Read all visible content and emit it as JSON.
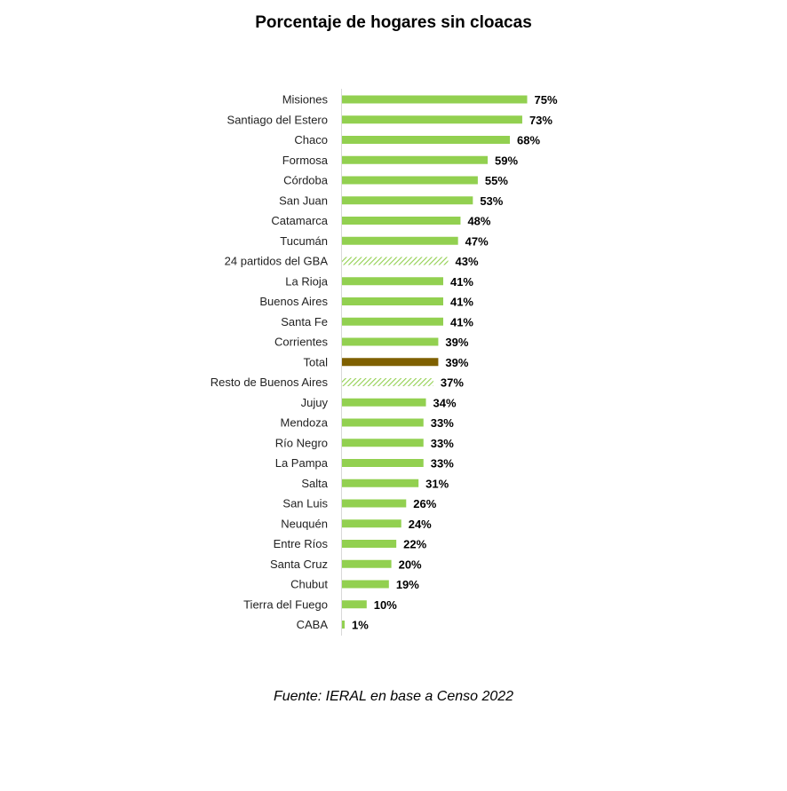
{
  "chart_data": {
    "type": "bar",
    "orientation": "horizontal",
    "title": "Porcentaje de hogares sin cloacas",
    "categories": [
      "Misiones",
      "Santiago del Estero",
      "Chaco",
      "Formosa",
      "Córdoba",
      "San Juan",
      "Catamarca",
      "Tucumán",
      "24 partidos del GBA",
      "La Rioja",
      "Buenos Aires",
      "Santa Fe",
      "Corrientes",
      "Total",
      "Resto de Buenos Aires",
      "Jujuy",
      "Mendoza",
      "Río Negro",
      "La Pampa",
      "Salta",
      "San Luis",
      "Neuquén",
      "Entre Ríos",
      "Santa Cruz",
      "Chubut",
      "Tierra del Fuego",
      "CABA"
    ],
    "values": [
      75,
      73,
      68,
      59,
      55,
      53,
      48,
      47,
      43,
      41,
      41,
      41,
      39,
      39,
      37,
      34,
      33,
      33,
      33,
      31,
      26,
      24,
      22,
      20,
      19,
      10,
      1
    ],
    "value_labels": [
      "75%",
      "73%",
      "68%",
      "59%",
      "55%",
      "53%",
      "48%",
      "47%",
      "43%",
      "41%",
      "41%",
      "41%",
      "39%",
      "39%",
      "37%",
      "34%",
      "33%",
      "33%",
      "33%",
      "31%",
      "26%",
      "24%",
      "22%",
      "20%",
      "19%",
      "10%",
      "1%"
    ],
    "bar_styles": [
      "solid",
      "solid",
      "solid",
      "solid",
      "solid",
      "solid",
      "solid",
      "solid",
      "hatched",
      "solid",
      "solid",
      "solid",
      "solid",
      "total",
      "hatched",
      "solid",
      "solid",
      "solid",
      "solid",
      "solid",
      "solid",
      "solid",
      "solid",
      "solid",
      "solid",
      "solid",
      "solid"
    ],
    "xlim": [
      0,
      80
    ],
    "grid": false,
    "colors": {
      "bar": "#92d050",
      "total": "#7f6000",
      "hatch": "#92d050",
      "axis": "#d9d9d9"
    }
  },
  "source": "Fuente: IERAL en base a Censo 2022"
}
